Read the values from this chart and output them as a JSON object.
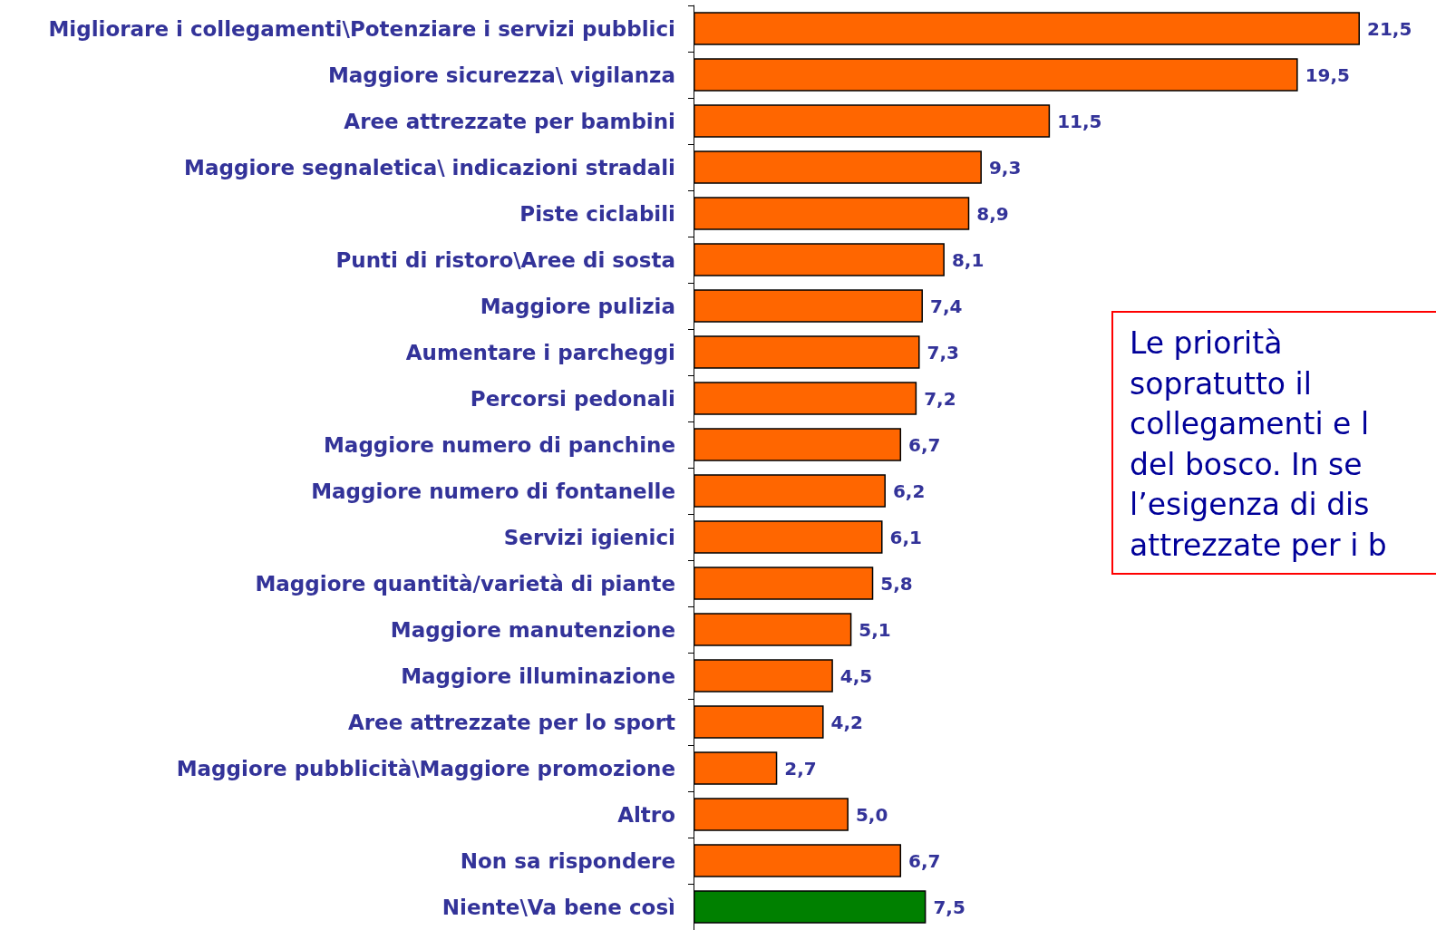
{
  "chart_data": {
    "type": "bar",
    "orientation": "horizontal",
    "categories": [
      "Migliorare i collegamenti\\Potenziare i servizi pubblici",
      "Maggiore sicurezza\\ vigilanza",
      "Aree attrezzate per bambini",
      "Maggiore segnaletica\\ indicazioni stradali",
      "Piste ciclabili",
      "Punti di ristoro\\Aree di sosta",
      "Maggiore pulizia",
      "Aumentare i parcheggi",
      "Percorsi pedonali",
      "Maggiore numero di panchine",
      "Maggiore numero di fontanelle",
      "Servizi igienici",
      "Maggiore quantità/varietà di piante",
      "Maggiore manutenzione",
      "Maggiore illuminazione",
      "Aree attrezzate per lo sport",
      "Maggiore pubblicità\\Maggiore promozione",
      "Altro",
      "Non sa rispondere",
      "Niente\\Va bene così"
    ],
    "values": [
      21.5,
      19.5,
      11.5,
      9.3,
      8.9,
      8.1,
      7.4,
      7.3,
      7.2,
      6.7,
      6.2,
      6.1,
      5.8,
      5.1,
      4.5,
      4.2,
      2.7,
      5.0,
      6.7,
      7.5
    ],
    "value_labels": [
      "21,5",
      "19,5",
      "11,5",
      "9,3",
      "8,9",
      "8,1",
      "7,4",
      "7,3",
      "7,2",
      "6,7",
      "6,2",
      "6,1",
      "5,8",
      "5,1",
      "4,5",
      "4,2",
      "2,7",
      "5,0",
      "6,7",
      "7,5"
    ],
    "colors": [
      "#ff6600",
      "#ff6600",
      "#ff6600",
      "#ff6600",
      "#ff6600",
      "#ff6600",
      "#ff6600",
      "#ff6600",
      "#ff6600",
      "#ff6600",
      "#ff6600",
      "#ff6600",
      "#ff6600",
      "#ff6600",
      "#ff6600",
      "#ff6600",
      "#ff6600",
      "#ff6600",
      "#ff6600",
      "#008000"
    ],
    "annotations": [
      "Le priorità\nsopratutto il\ncollegamenti e l\ndel bosco. In se\nl’esigenza di dis\nattrezzate per i b"
    ]
  }
}
